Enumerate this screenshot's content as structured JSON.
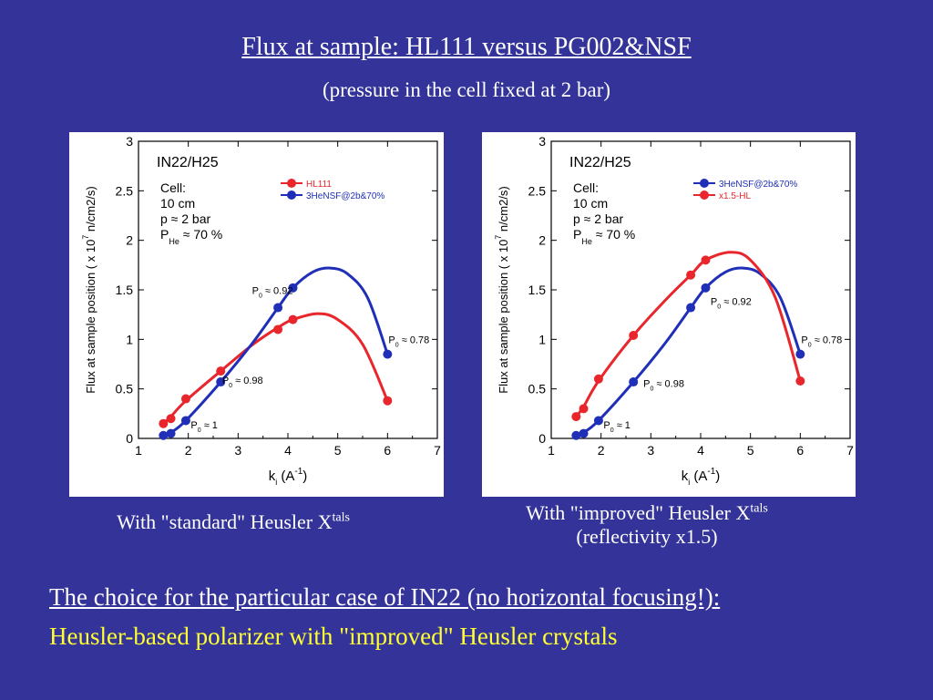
{
  "slide": {
    "title": "Flux at sample: HL111 versus PG002&NSF",
    "subtitle": "(pressure in the cell fixed at 2 bar)",
    "caption_left": "With \"standard\" Heusler X",
    "caption_left_sup": "tals",
    "caption_right_line1": "With \"improved\" Heusler X",
    "caption_right_sup": "tals",
    "caption_right_line2": "(reflectivity x1.5)",
    "conclusion_line1": "The choice for the particular case of IN22 (no horizontal focusing!):",
    "conclusion_line2": "Heusler-based polarizer with \"improved\" Heusler crystals",
    "colors": {
      "background": "#333399",
      "highlight": "#ffff33",
      "red": "#e8262b",
      "blue": "#1f2fb8"
    }
  },
  "chart_data": [
    {
      "type": "line",
      "xlabel": "k",
      "xlabel_sub": "i",
      "xlabel_unit": "(A",
      "xlabel_unit_sup": "-1",
      "xlabel_unit_end": ")",
      "ylabel": "Flux at sample position ( x 10",
      "ylabel_sup": "7",
      "ylabel_end": " n/cm2/s)",
      "xlim": [
        1,
        7
      ],
      "ylim": [
        0,
        3
      ],
      "xticks": [
        "1",
        "2",
        "3",
        "4",
        "5",
        "6",
        "7"
      ],
      "yticks": [
        "0",
        "0.5",
        "1",
        "1.5",
        "2",
        "2.5",
        "3"
      ],
      "inset_title": "IN22/H25",
      "inset_text": [
        "Cell:",
        "10 cm",
        "p ≈ 2 bar"
      ],
      "inset_phe": "P",
      "inset_phe_sub": "He",
      "inset_phe_val": "≈ 70 %",
      "legend": [
        {
          "name": "HL111",
          "color": "#e8262b"
        },
        {
          "name": "3HeNSF@2b&70%",
          "color": "#1f2fb8"
        }
      ],
      "series": [
        {
          "name": "HL111",
          "color": "#e8262b",
          "points": [
            [
              1.5,
              0.15
            ],
            [
              1.65,
              0.2
            ],
            [
              1.95,
              0.4
            ],
            [
              2.65,
              0.68
            ],
            [
              3.8,
              1.1
            ],
            [
              4.1,
              1.2
            ],
            [
              6.0,
              0.38
            ]
          ],
          "curve": [
            [
              1.5,
              0.15
            ],
            [
              1.65,
              0.22
            ],
            [
              1.95,
              0.38
            ],
            [
              2.65,
              0.68
            ],
            [
              3.3,
              0.95
            ],
            [
              3.8,
              1.12
            ],
            [
              4.1,
              1.2
            ],
            [
              4.6,
              1.26
            ],
            [
              5.0,
              1.2
            ],
            [
              5.5,
              0.95
            ],
            [
              6.0,
              0.38
            ]
          ]
        },
        {
          "name": "3HeNSF@2b&70%",
          "color": "#1f2fb8",
          "points": [
            [
              1.5,
              0.03
            ],
            [
              1.65,
              0.05
            ],
            [
              1.95,
              0.18
            ],
            [
              2.65,
              0.57
            ],
            [
              3.8,
              1.32
            ],
            [
              4.1,
              1.52
            ],
            [
              6.0,
              0.85
            ]
          ],
          "curve": [
            [
              1.5,
              0.03
            ],
            [
              1.65,
              0.06
            ],
            [
              1.95,
              0.18
            ],
            [
              2.65,
              0.57
            ],
            [
              3.3,
              0.97
            ],
            [
              3.8,
              1.32
            ],
            [
              4.1,
              1.52
            ],
            [
              4.5,
              1.68
            ],
            [
              4.85,
              1.72
            ],
            [
              5.2,
              1.66
            ],
            [
              5.6,
              1.42
            ],
            [
              6.0,
              0.85
            ]
          ]
        }
      ],
      "annotations": [
        {
          "base": "P",
          "sub": "0",
          "text": "≈ 0.92",
          "x": 3.28,
          "y": 1.46
        },
        {
          "base": "P",
          "sub": "0",
          "text": "≈ 0.98",
          "x": 2.68,
          "y": 0.55
        },
        {
          "base": "P",
          "sub": "0",
          "text": "≈ 1",
          "x": 2.05,
          "y": 0.1
        },
        {
          "base": "P",
          "sub": "0",
          "text": "≈ 0.78",
          "x": 6.02,
          "y": 0.96
        }
      ]
    },
    {
      "type": "line",
      "xlabel": "k",
      "xlabel_sub": "i",
      "xlabel_unit": "(A",
      "xlabel_unit_sup": "-1",
      "xlabel_unit_end": ")",
      "ylabel": "Flux at sample position ( x 10",
      "ylabel_sup": "7",
      "ylabel_end": " n/cm2/s)",
      "xlim": [
        1,
        7
      ],
      "ylim": [
        0,
        3
      ],
      "xticks": [
        "1",
        "2",
        "3",
        "4",
        "5",
        "6",
        "7"
      ],
      "yticks": [
        "0",
        "0.5",
        "1",
        "1.5",
        "2",
        "2.5",
        "3"
      ],
      "inset_title": "IN22/H25",
      "inset_text": [
        "Cell:",
        "10 cm",
        "p ≈ 2 bar"
      ],
      "inset_phe": "P",
      "inset_phe_sub": "He",
      "inset_phe_val": "≈ 70 %",
      "legend": [
        {
          "name": "3HeNSF@2b&70%",
          "color": "#1f2fb8"
        },
        {
          "name": "x1.5-HL",
          "color": "#e8262b"
        }
      ],
      "series": [
        {
          "name": "3HeNSF@2b&70%",
          "color": "#1f2fb8",
          "points": [
            [
              1.5,
              0.03
            ],
            [
              1.65,
              0.05
            ],
            [
              1.95,
              0.18
            ],
            [
              2.65,
              0.57
            ],
            [
              3.8,
              1.32
            ],
            [
              4.1,
              1.52
            ],
            [
              6.0,
              0.85
            ]
          ],
          "curve": [
            [
              1.5,
              0.03
            ],
            [
              1.65,
              0.06
            ],
            [
              1.95,
              0.18
            ],
            [
              2.65,
              0.57
            ],
            [
              3.3,
              0.97
            ],
            [
              3.8,
              1.32
            ],
            [
              4.1,
              1.52
            ],
            [
              4.5,
              1.68
            ],
            [
              4.85,
              1.72
            ],
            [
              5.2,
              1.66
            ],
            [
              5.6,
              1.42
            ],
            [
              6.0,
              0.85
            ]
          ]
        },
        {
          "name": "x1.5-HL",
          "color": "#e8262b",
          "points": [
            [
              1.5,
              0.22
            ],
            [
              1.65,
              0.3
            ],
            [
              1.95,
              0.6
            ],
            [
              2.65,
              1.04
            ],
            [
              3.8,
              1.65
            ],
            [
              4.1,
              1.8
            ],
            [
              6.0,
              0.58
            ]
          ],
          "curve": [
            [
              1.5,
              0.22
            ],
            [
              1.65,
              0.32
            ],
            [
              1.95,
              0.58
            ],
            [
              2.65,
              1.04
            ],
            [
              3.3,
              1.4
            ],
            [
              3.8,
              1.65
            ],
            [
              4.1,
              1.8
            ],
            [
              4.6,
              1.88
            ],
            [
              5.0,
              1.8
            ],
            [
              5.5,
              1.42
            ],
            [
              6.0,
              0.58
            ]
          ]
        }
      ],
      "annotations": [
        {
          "base": "P",
          "sub": "0",
          "text": "≈ 0.92",
          "x": 4.2,
          "y": 1.35
        },
        {
          "base": "P",
          "sub": "0",
          "text": "≈ 0.98",
          "x": 2.85,
          "y": 0.52
        },
        {
          "base": "P",
          "sub": "0",
          "text": "≈ 1",
          "x": 2.05,
          "y": 0.1
        },
        {
          "base": "P",
          "sub": "0",
          "text": "≈ 0.78",
          "x": 6.02,
          "y": 0.96
        }
      ]
    }
  ]
}
